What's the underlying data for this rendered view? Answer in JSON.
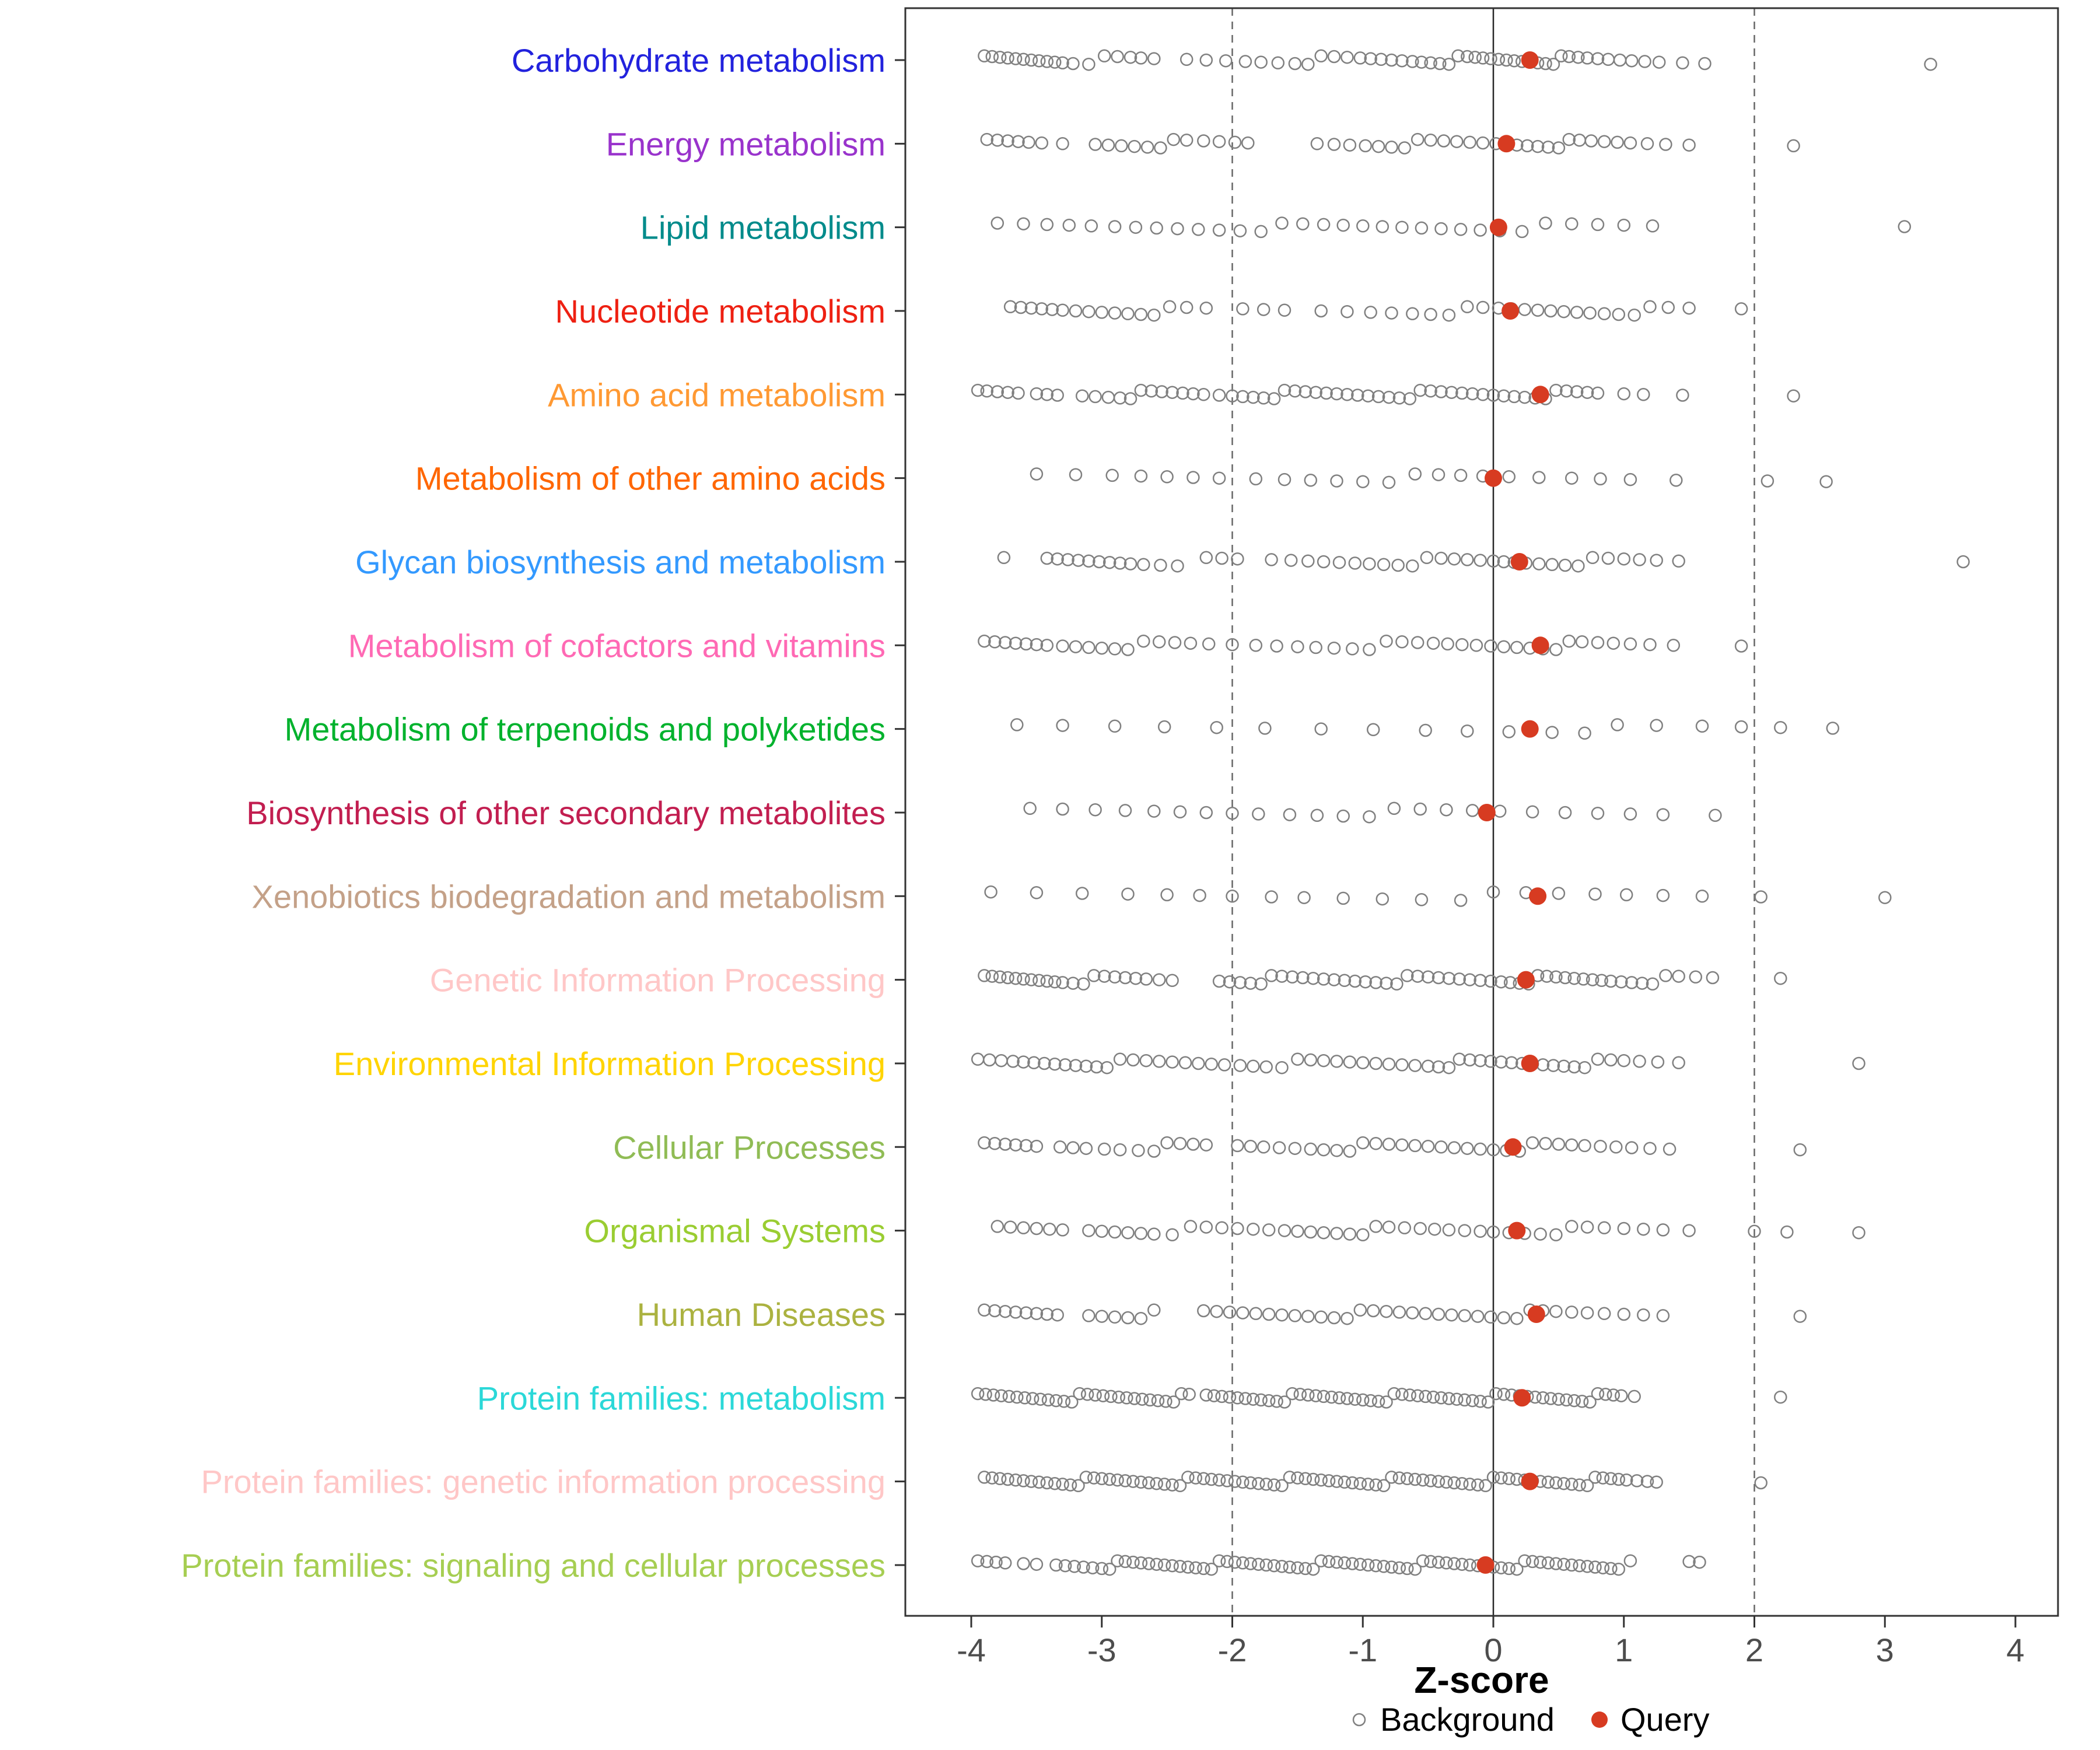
{
  "chart_data": {
    "type": "scatter",
    "title": "",
    "xlabel": "Z-score",
    "ylabel": "",
    "x_ticks": [
      -4,
      -3,
      -2,
      -1,
      0,
      1,
      2,
      3,
      4
    ],
    "xlim": [
      -4.5,
      4.35
    ],
    "grid": false,
    "legend_position": "bottom",
    "reference_lines": {
      "solid": [
        0
      ],
      "dashed": [
        -2,
        2
      ]
    },
    "legend": {
      "background_label": "Background",
      "query_label": "Query"
    },
    "colors": {
      "query": "#D73B21",
      "background_stroke": "#808080",
      "axis_text": "#4D4D4D",
      "panel_border": "#333333"
    },
    "categories": [
      {
        "label": "Carbohydrate metabolism",
        "color": "#2222DD",
        "query": 0.28,
        "background": [
          -3.9,
          -3.84,
          -3.78,
          -3.72,
          -3.66,
          -3.6,
          -3.54,
          -3.48,
          -3.42,
          -3.36,
          -3.3,
          -3.22,
          -3.1,
          -2.98,
          -2.88,
          -2.78,
          -2.7,
          -2.6,
          -2.35,
          -2.2,
          -2.05,
          -1.9,
          -1.78,
          -1.65,
          -1.52,
          -1.42,
          -1.32,
          -1.22,
          -1.12,
          -1.02,
          -0.94,
          -0.86,
          -0.78,
          -0.7,
          -0.62,
          -0.55,
          -0.48,
          -0.41,
          -0.34,
          -0.27,
          -0.2,
          -0.14,
          -0.08,
          -0.02,
          0.04,
          0.1,
          0.16,
          0.22,
          0.28,
          0.34,
          0.4,
          0.46,
          0.52,
          0.58,
          0.65,
          0.72,
          0.8,
          0.88,
          0.97,
          1.06,
          1.16,
          1.27,
          1.45,
          1.62,
          3.35
        ]
      },
      {
        "label": "Energy metabolism",
        "color": "#9933CC",
        "query": 0.1,
        "background": [
          -3.88,
          -3.8,
          -3.72,
          -3.64,
          -3.56,
          -3.46,
          -3.3,
          -3.05,
          -2.95,
          -2.85,
          -2.75,
          -2.65,
          -2.55,
          -2.45,
          -2.35,
          -2.22,
          -2.1,
          -1.98,
          -1.88,
          -1.35,
          -1.22,
          -1.1,
          -0.98,
          -0.88,
          -0.78,
          -0.68,
          -0.58,
          -0.48,
          -0.38,
          -0.28,
          -0.18,
          -0.08,
          0.02,
          0.1,
          0.18,
          0.26,
          0.34,
          0.42,
          0.5,
          0.58,
          0.66,
          0.75,
          0.85,
          0.95,
          1.05,
          1.18,
          1.32,
          1.5,
          2.3
        ]
      },
      {
        "label": "Lipid metabolism",
        "color": "#008B8B",
        "query": 0.04,
        "background": [
          -3.8,
          -3.6,
          -3.42,
          -3.25,
          -3.08,
          -2.9,
          -2.74,
          -2.58,
          -2.42,
          -2.26,
          -2.1,
          -1.94,
          -1.78,
          -1.62,
          -1.46,
          -1.3,
          -1.15,
          -1.0,
          -0.85,
          -0.7,
          -0.55,
          -0.4,
          -0.25,
          -0.1,
          0.05,
          0.22,
          0.4,
          0.6,
          0.8,
          1.0,
          1.22,
          3.15
        ]
      },
      {
        "label": "Nucleotide metabolism",
        "color": "#EE2012",
        "query": 0.13,
        "background": [
          -3.7,
          -3.62,
          -3.54,
          -3.46,
          -3.38,
          -3.3,
          -3.2,
          -3.1,
          -3.0,
          -2.9,
          -2.8,
          -2.7,
          -2.6,
          -2.48,
          -2.35,
          -2.2,
          -1.92,
          -1.76,
          -1.6,
          -1.32,
          -1.12,
          -0.94,
          -0.78,
          -0.62,
          -0.48,
          -0.34,
          -0.2,
          -0.08,
          0.04,
          0.14,
          0.24,
          0.34,
          0.44,
          0.54,
          0.64,
          0.74,
          0.85,
          0.96,
          1.08,
          1.2,
          1.34,
          1.5,
          1.9
        ]
      },
      {
        "label": "Amino acid metabolism",
        "color": "#FF9933",
        "query": 0.36,
        "background": [
          -3.95,
          -3.88,
          -3.8,
          -3.72,
          -3.64,
          -3.5,
          -3.42,
          -3.34,
          -3.15,
          -3.05,
          -2.95,
          -2.86,
          -2.78,
          -2.7,
          -2.62,
          -2.54,
          -2.46,
          -2.38,
          -2.3,
          -2.22,
          -2.1,
          -2.0,
          -1.92,
          -1.84,
          -1.76,
          -1.68,
          -1.6,
          -1.52,
          -1.44,
          -1.36,
          -1.28,
          -1.2,
          -1.12,
          -1.04,
          -0.96,
          -0.88,
          -0.8,
          -0.72,
          -0.64,
          -0.56,
          -0.48,
          -0.4,
          -0.32,
          -0.24,
          -0.16,
          -0.08,
          0.0,
          0.08,
          0.16,
          0.24,
          0.32,
          0.4,
          0.48,
          0.56,
          0.64,
          0.72,
          0.8,
          1.0,
          1.15,
          1.45,
          2.3
        ]
      },
      {
        "label": "Metabolism of other amino acids",
        "color": "#FF6600",
        "query": 0.0,
        "background": [
          -3.5,
          -3.2,
          -2.92,
          -2.7,
          -2.5,
          -2.3,
          -2.1,
          -1.82,
          -1.6,
          -1.4,
          -1.2,
          -1.0,
          -0.8,
          -0.6,
          -0.42,
          -0.25,
          -0.08,
          0.12,
          0.35,
          0.6,
          0.82,
          1.05,
          1.4,
          2.1,
          2.55
        ]
      },
      {
        "label": "Glycan biosynthesis and metabolism",
        "color": "#3399FF",
        "query": 0.2,
        "background": [
          -3.75,
          -3.42,
          -3.34,
          -3.26,
          -3.18,
          -3.1,
          -3.02,
          -2.94,
          -2.86,
          -2.78,
          -2.68,
          -2.55,
          -2.42,
          -2.2,
          -2.08,
          -1.96,
          -1.7,
          -1.55,
          -1.42,
          -1.3,
          -1.18,
          -1.06,
          -0.95,
          -0.84,
          -0.73,
          -0.62,
          -0.51,
          -0.4,
          -0.3,
          -0.2,
          -0.1,
          0.0,
          0.08,
          0.16,
          0.25,
          0.35,
          0.45,
          0.55,
          0.65,
          0.76,
          0.88,
          1.0,
          1.12,
          1.25,
          1.42,
          3.6
        ]
      },
      {
        "label": "Metabolism of cofactors and vitamins",
        "color": "#FF69B4",
        "query": 0.36,
        "background": [
          -3.9,
          -3.82,
          -3.74,
          -3.66,
          -3.58,
          -3.5,
          -3.42,
          -3.3,
          -3.2,
          -3.1,
          -3.0,
          -2.9,
          -2.8,
          -2.68,
          -2.56,
          -2.44,
          -2.32,
          -2.18,
          -2.0,
          -1.82,
          -1.66,
          -1.5,
          -1.36,
          -1.22,
          -1.08,
          -0.95,
          -0.82,
          -0.7,
          -0.58,
          -0.46,
          -0.35,
          -0.24,
          -0.13,
          -0.02,
          0.08,
          0.18,
          0.28,
          0.38,
          0.48,
          0.58,
          0.68,
          0.8,
          0.92,
          1.05,
          1.2,
          1.38,
          1.9
        ]
      },
      {
        "label": "Metabolism of terpenoids and polyketides",
        "color": "#00B22D",
        "query": 0.28,
        "background": [
          -3.65,
          -3.3,
          -2.9,
          -2.52,
          -2.12,
          -1.75,
          -1.32,
          -0.92,
          -0.52,
          -0.2,
          0.12,
          0.45,
          0.7,
          0.95,
          1.25,
          1.6,
          1.9,
          2.2,
          2.6
        ]
      },
      {
        "label": "Biosynthesis of other secondary metabolites",
        "color": "#C21E50",
        "query": -0.05,
        "background": [
          -3.55,
          -3.3,
          -3.05,
          -2.82,
          -2.6,
          -2.4,
          -2.2,
          -2.0,
          -1.8,
          -1.56,
          -1.35,
          -1.15,
          -0.95,
          -0.76,
          -0.56,
          -0.36,
          -0.16,
          0.05,
          0.3,
          0.55,
          0.8,
          1.05,
          1.3,
          1.7
        ]
      },
      {
        "label": "Xenobiotics biodegradation and metabolism",
        "color": "#C4A188",
        "query": 0.34,
        "background": [
          -3.85,
          -3.5,
          -3.15,
          -2.8,
          -2.5,
          -2.25,
          -2.0,
          -1.7,
          -1.45,
          -1.15,
          -0.85,
          -0.55,
          -0.25,
          0.0,
          0.25,
          0.5,
          0.78,
          1.02,
          1.3,
          1.6,
          2.05,
          3.0
        ]
      },
      {
        "label": "Genetic Information Processing",
        "color": "#FFC7C7",
        "query": 0.25,
        "background": [
          -3.9,
          -3.84,
          -3.78,
          -3.72,
          -3.66,
          -3.6,
          -3.54,
          -3.48,
          -3.42,
          -3.36,
          -3.3,
          -3.22,
          -3.14,
          -3.06,
          -2.98,
          -2.9,
          -2.82,
          -2.74,
          -2.66,
          -2.56,
          -2.46,
          -2.1,
          -2.02,
          -1.94,
          -1.86,
          -1.78,
          -1.7,
          -1.62,
          -1.54,
          -1.46,
          -1.38,
          -1.3,
          -1.22,
          -1.14,
          -1.06,
          -0.98,
          -0.9,
          -0.82,
          -0.74,
          -0.66,
          -0.58,
          -0.5,
          -0.42,
          -0.34,
          -0.26,
          -0.18,
          -0.1,
          -0.02,
          0.06,
          0.13,
          0.2,
          0.27,
          0.34,
          0.41,
          0.48,
          0.55,
          0.62,
          0.69,
          0.76,
          0.83,
          0.9,
          0.98,
          1.06,
          1.14,
          1.22,
          1.32,
          1.42,
          1.55,
          1.68,
          2.2
        ]
      },
      {
        "label": "Environmental Information Processing",
        "color": "#FFD400",
        "query": 0.28,
        "background": [
          -3.95,
          -3.86,
          -3.77,
          -3.68,
          -3.6,
          -3.52,
          -3.44,
          -3.36,
          -3.28,
          -3.2,
          -3.12,
          -3.04,
          -2.96,
          -2.86,
          -2.76,
          -2.66,
          -2.56,
          -2.46,
          -2.36,
          -2.26,
          -2.16,
          -2.06,
          -1.94,
          -1.84,
          -1.74,
          -1.62,
          -1.5,
          -1.4,
          -1.3,
          -1.2,
          -1.1,
          -1.0,
          -0.9,
          -0.8,
          -0.7,
          -0.6,
          -0.5,
          -0.42,
          -0.34,
          -0.26,
          -0.18,
          -0.1,
          -0.02,
          0.06,
          0.14,
          0.22,
          0.3,
          0.38,
          0.46,
          0.54,
          0.62,
          0.7,
          0.8,
          0.9,
          1.0,
          1.12,
          1.26,
          1.42,
          2.8
        ]
      },
      {
        "label": "Cellular Processes",
        "color": "#90BC55",
        "query": 0.15,
        "background": [
          -3.9,
          -3.82,
          -3.74,
          -3.66,
          -3.58,
          -3.5,
          -3.32,
          -3.22,
          -3.12,
          -2.98,
          -2.86,
          -2.72,
          -2.6,
          -2.5,
          -2.4,
          -2.3,
          -2.2,
          -1.96,
          -1.86,
          -1.76,
          -1.64,
          -1.52,
          -1.4,
          -1.3,
          -1.2,
          -1.1,
          -1.0,
          -0.9,
          -0.8,
          -0.7,
          -0.6,
          -0.5,
          -0.4,
          -0.3,
          -0.2,
          -0.1,
          0.0,
          0.1,
          0.2,
          0.3,
          0.4,
          0.5,
          0.6,
          0.7,
          0.82,
          0.94,
          1.06,
          1.2,
          1.35,
          2.35
        ]
      },
      {
        "label": "Organismal Systems",
        "color": "#9ACD32",
        "query": 0.18,
        "background": [
          -3.8,
          -3.7,
          -3.6,
          -3.5,
          -3.4,
          -3.3,
          -3.1,
          -3.0,
          -2.9,
          -2.8,
          -2.7,
          -2.6,
          -2.46,
          -2.32,
          -2.2,
          -2.08,
          -1.96,
          -1.84,
          -1.72,
          -1.6,
          -1.5,
          -1.4,
          -1.3,
          -1.2,
          -1.1,
          -1.0,
          -0.9,
          -0.8,
          -0.68,
          -0.56,
          -0.45,
          -0.34,
          -0.22,
          -0.1,
          0.0,
          0.12,
          0.24,
          0.36,
          0.48,
          0.6,
          0.72,
          0.85,
          1.0,
          1.15,
          1.3,
          1.5,
          2.0,
          2.25,
          2.8
        ]
      },
      {
        "label": "Human Diseases",
        "color": "#ABB240",
        "query": 0.33,
        "background": [
          -3.9,
          -3.82,
          -3.74,
          -3.66,
          -3.58,
          -3.5,
          -3.42,
          -3.34,
          -3.1,
          -3.0,
          -2.9,
          -2.8,
          -2.7,
          -2.6,
          -2.22,
          -2.12,
          -2.02,
          -1.92,
          -1.82,
          -1.72,
          -1.62,
          -1.52,
          -1.42,
          -1.32,
          -1.22,
          -1.12,
          -1.02,
          -0.92,
          -0.82,
          -0.72,
          -0.62,
          -0.52,
          -0.42,
          -0.32,
          -0.22,
          -0.12,
          -0.02,
          0.08,
          0.18,
          0.28,
          0.38,
          0.48,
          0.6,
          0.72,
          0.85,
          1.0,
          1.15,
          1.3,
          2.35
        ]
      },
      {
        "label": "Protein families: metabolism",
        "color": "#2BD8D8",
        "query": 0.22,
        "background": [
          -3.95,
          -3.89,
          -3.83,
          -3.77,
          -3.71,
          -3.65,
          -3.59,
          -3.53,
          -3.47,
          -3.41,
          -3.35,
          -3.29,
          -3.23,
          -3.17,
          -3.11,
          -3.05,
          -2.99,
          -2.93,
          -2.87,
          -2.81,
          -2.75,
          -2.69,
          -2.63,
          -2.57,
          -2.51,
          -2.45,
          -2.39,
          -2.33,
          -2.2,
          -2.14,
          -2.08,
          -2.02,
          -1.96,
          -1.9,
          -1.84,
          -1.78,
          -1.72,
          -1.66,
          -1.6,
          -1.54,
          -1.48,
          -1.42,
          -1.36,
          -1.3,
          -1.24,
          -1.18,
          -1.12,
          -1.06,
          -1.0,
          -0.94,
          -0.88,
          -0.82,
          -0.76,
          -0.7,
          -0.64,
          -0.58,
          -0.52,
          -0.46,
          -0.4,
          -0.34,
          -0.28,
          -0.22,
          -0.16,
          -0.1,
          -0.04,
          0.02,
          0.08,
          0.14,
          0.2,
          0.26,
          0.32,
          0.38,
          0.44,
          0.5,
          0.56,
          0.62,
          0.68,
          0.74,
          0.8,
          0.86,
          0.92,
          0.98,
          1.08,
          2.2
        ]
      },
      {
        "label": "Protein families: genetic information processing",
        "color": "#FFC7C7",
        "query": 0.28,
        "background": [
          -3.9,
          -3.84,
          -3.78,
          -3.72,
          -3.66,
          -3.6,
          -3.54,
          -3.48,
          -3.42,
          -3.36,
          -3.3,
          -3.24,
          -3.18,
          -3.12,
          -3.06,
          -3.0,
          -2.94,
          -2.88,
          -2.82,
          -2.76,
          -2.7,
          -2.64,
          -2.58,
          -2.52,
          -2.46,
          -2.4,
          -2.34,
          -2.28,
          -2.22,
          -2.16,
          -2.1,
          -2.04,
          -1.98,
          -1.92,
          -1.86,
          -1.8,
          -1.74,
          -1.68,
          -1.62,
          -1.56,
          -1.5,
          -1.44,
          -1.38,
          -1.32,
          -1.26,
          -1.2,
          -1.14,
          -1.08,
          -1.02,
          -0.96,
          -0.9,
          -0.84,
          -0.78,
          -0.72,
          -0.66,
          -0.6,
          -0.54,
          -0.48,
          -0.42,
          -0.36,
          -0.3,
          -0.24,
          -0.18,
          -0.12,
          -0.06,
          0.0,
          0.06,
          0.12,
          0.18,
          0.24,
          0.3,
          0.36,
          0.42,
          0.48,
          0.54,
          0.6,
          0.66,
          0.72,
          0.78,
          0.84,
          0.9,
          0.96,
          1.02,
          1.1,
          1.18,
          1.25,
          2.05
        ]
      },
      {
        "label": "Protein families: signaling and cellular processes",
        "color": "#A6CE52",
        "query": -0.06,
        "background": [
          -3.95,
          -3.88,
          -3.81,
          -3.74,
          -3.6,
          -3.5,
          -3.35,
          -3.28,
          -3.21,
          -3.14,
          -3.07,
          -3.0,
          -2.94,
          -2.88,
          -2.82,
          -2.76,
          -2.7,
          -2.64,
          -2.58,
          -2.52,
          -2.46,
          -2.4,
          -2.34,
          -2.28,
          -2.22,
          -2.16,
          -2.1,
          -2.04,
          -1.98,
          -1.92,
          -1.86,
          -1.8,
          -1.74,
          -1.68,
          -1.62,
          -1.56,
          -1.5,
          -1.44,
          -1.38,
          -1.32,
          -1.26,
          -1.2,
          -1.14,
          -1.08,
          -1.02,
          -0.96,
          -0.9,
          -0.84,
          -0.78,
          -0.72,
          -0.66,
          -0.6,
          -0.54,
          -0.48,
          -0.42,
          -0.36,
          -0.3,
          -0.24,
          -0.18,
          -0.12,
          -0.06,
          0.0,
          0.06,
          0.12,
          0.18,
          0.24,
          0.3,
          0.36,
          0.42,
          0.48,
          0.54,
          0.6,
          0.66,
          0.72,
          0.78,
          0.84,
          0.9,
          0.96,
          1.05,
          1.5,
          1.58
        ]
      }
    ]
  }
}
